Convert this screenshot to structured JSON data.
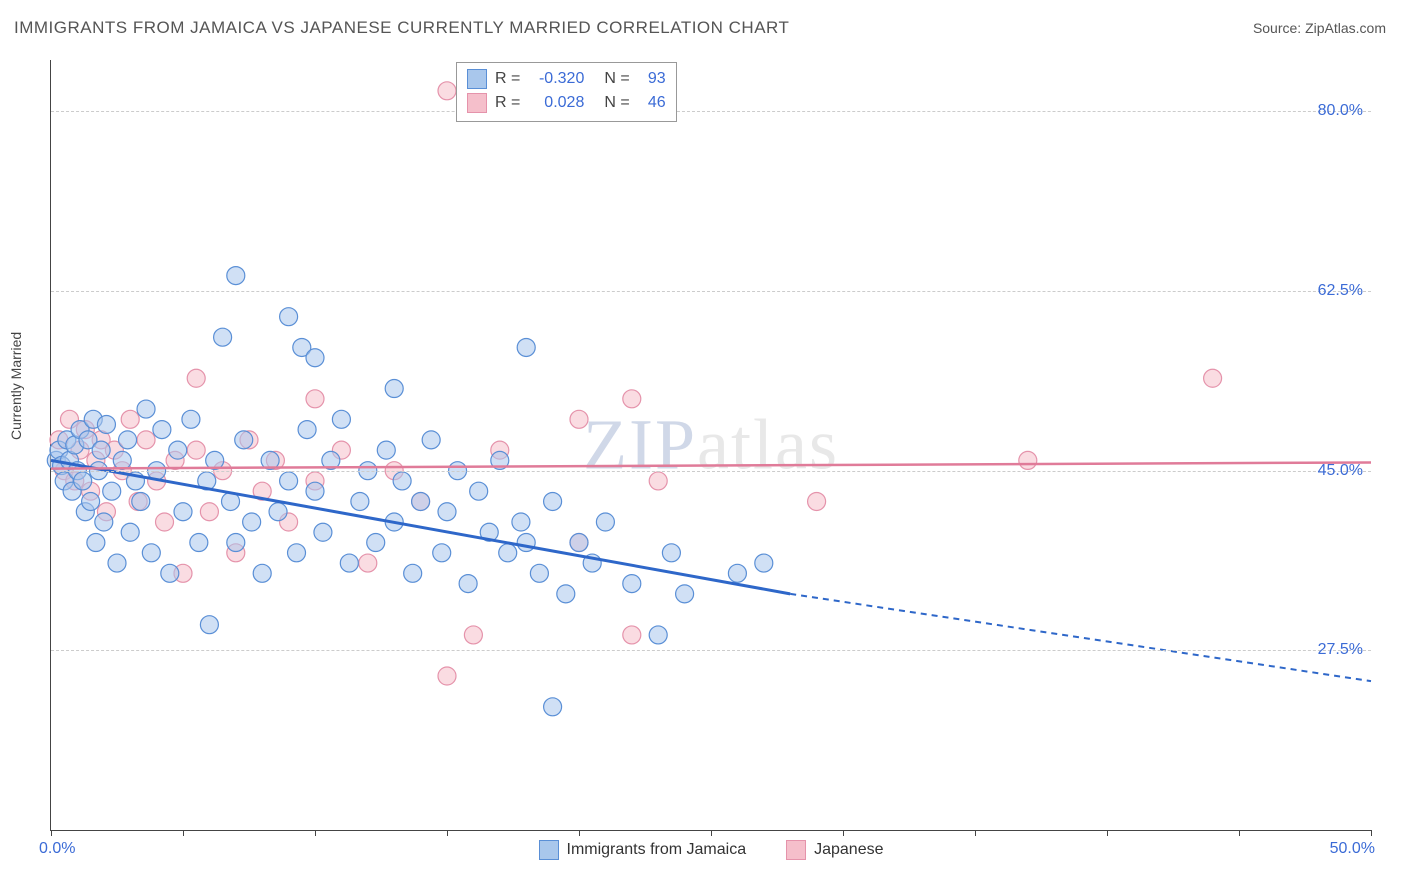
{
  "header": {
    "title": "IMMIGRANTS FROM JAMAICA VS JAPANESE CURRENTLY MARRIED CORRELATION CHART",
    "source": "Source: ZipAtlas.com"
  },
  "chart": {
    "type": "scatter",
    "y_axis_label": "Currently Married",
    "watermark": "ZIPatlas",
    "x_range": [
      0,
      50
    ],
    "y_range": [
      10,
      85
    ],
    "x_ticks": [
      0,
      5,
      10,
      15,
      20,
      25,
      30,
      35,
      40,
      45,
      50
    ],
    "x_tick_labels": {
      "first": "0.0%",
      "last": "50.0%"
    },
    "y_ticks": [
      27.5,
      45.0,
      62.5,
      80.0
    ],
    "y_tick_labels": [
      "27.5%",
      "45.0%",
      "62.5%",
      "80.0%"
    ],
    "background_color": "#ffffff",
    "grid_color": "#cccccc",
    "axis_color": "#444444",
    "marker_radius": 9,
    "marker_opacity": 0.55,
    "series": {
      "blue": {
        "label": "Immigrants from Jamaica",
        "fill": "#a9c7ec",
        "stroke": "#5a8fd6",
        "line_color": "#2e67c9",
        "R": "-0.320",
        "N": "93",
        "trend": {
          "x1": 0,
          "y1": 46.0,
          "x2_solid": 28,
          "y2_solid": 33.0,
          "x2": 50,
          "y2": 24.5
        }
      },
      "pink": {
        "label": "Japanese",
        "fill": "#f5bfcb",
        "stroke": "#e593ab",
        "line_color": "#e07b99",
        "R": "0.028",
        "N": "46",
        "trend": {
          "x1": 0,
          "y1": 45.2,
          "x2": 50,
          "y2": 45.8
        }
      }
    },
    "blue_points": [
      [
        0.2,
        46
      ],
      [
        0.3,
        47
      ],
      [
        0.4,
        45.5
      ],
      [
        0.5,
        44
      ],
      [
        0.6,
        48
      ],
      [
        0.7,
        46
      ],
      [
        0.8,
        43
      ],
      [
        0.9,
        47.5
      ],
      [
        1.0,
        45
      ],
      [
        1.1,
        49
      ],
      [
        1.2,
        44
      ],
      [
        1.3,
        41
      ],
      [
        1.4,
        48
      ],
      [
        1.5,
        42
      ],
      [
        1.6,
        50
      ],
      [
        1.7,
        38
      ],
      [
        1.8,
        45
      ],
      [
        1.9,
        47
      ],
      [
        2.0,
        40
      ],
      [
        2.1,
        49.5
      ],
      [
        2.3,
        43
      ],
      [
        2.5,
        36
      ],
      [
        2.7,
        46
      ],
      [
        2.9,
        48
      ],
      [
        3.0,
        39
      ],
      [
        3.2,
        44
      ],
      [
        3.4,
        42
      ],
      [
        3.6,
        51
      ],
      [
        3.8,
        37
      ],
      [
        4.0,
        45
      ],
      [
        4.2,
        49
      ],
      [
        4.5,
        35
      ],
      [
        4.8,
        47
      ],
      [
        5.0,
        41
      ],
      [
        5.3,
        50
      ],
      [
        5.6,
        38
      ],
      [
        5.9,
        44
      ],
      [
        6.0,
        30
      ],
      [
        6.2,
        46
      ],
      [
        6.5,
        58
      ],
      [
        6.8,
        42
      ],
      [
        7.0,
        38
      ],
      [
        7.0,
        64
      ],
      [
        7.3,
        48
      ],
      [
        7.6,
        40
      ],
      [
        8.0,
        35
      ],
      [
        8.3,
        46
      ],
      [
        8.6,
        41
      ],
      [
        9.0,
        44
      ],
      [
        9.0,
        60
      ],
      [
        9.3,
        37
      ],
      [
        9.5,
        57
      ],
      [
        9.7,
        49
      ],
      [
        10.0,
        43
      ],
      [
        10.0,
        56
      ],
      [
        10.3,
        39
      ],
      [
        10.6,
        46
      ],
      [
        11.0,
        50
      ],
      [
        11.3,
        36
      ],
      [
        11.7,
        42
      ],
      [
        12.0,
        45
      ],
      [
        12.3,
        38
      ],
      [
        12.7,
        47
      ],
      [
        13.0,
        40
      ],
      [
        13.0,
        53
      ],
      [
        13.3,
        44
      ],
      [
        13.7,
        35
      ],
      [
        14.0,
        42
      ],
      [
        14.4,
        48
      ],
      [
        14.8,
        37
      ],
      [
        15.0,
        41
      ],
      [
        15.4,
        45
      ],
      [
        15.8,
        34
      ],
      [
        16.2,
        43
      ],
      [
        16.6,
        39
      ],
      [
        17.0,
        46
      ],
      [
        17.3,
        37
      ],
      [
        17.8,
        40
      ],
      [
        18.0,
        38
      ],
      [
        18.0,
        57
      ],
      [
        18.5,
        35
      ],
      [
        19.0,
        42
      ],
      [
        19.0,
        22
      ],
      [
        19.5,
        33
      ],
      [
        20.0,
        38
      ],
      [
        20.5,
        36
      ],
      [
        21.0,
        40
      ],
      [
        22.0,
        34
      ],
      [
        23.0,
        29
      ],
      [
        23.5,
        37
      ],
      [
        24.0,
        33
      ],
      [
        26.0,
        35
      ],
      [
        27.0,
        36
      ]
    ],
    "pink_points": [
      [
        0.3,
        48
      ],
      [
        0.5,
        45
      ],
      [
        0.7,
        50
      ],
      [
        0.9,
        44
      ],
      [
        1.1,
        47
      ],
      [
        1.3,
        49
      ],
      [
        1.5,
        43
      ],
      [
        1.7,
        46
      ],
      [
        1.9,
        48
      ],
      [
        2.1,
        41
      ],
      [
        2.4,
        47
      ],
      [
        2.7,
        45
      ],
      [
        3.0,
        50
      ],
      [
        3.3,
        42
      ],
      [
        3.6,
        48
      ],
      [
        4.0,
        44
      ],
      [
        4.3,
        40
      ],
      [
        4.7,
        46
      ],
      [
        5.0,
        35
      ],
      [
        5.5,
        47
      ],
      [
        5.5,
        54
      ],
      [
        6.0,
        41
      ],
      [
        6.5,
        45
      ],
      [
        7.0,
        37
      ],
      [
        7.5,
        48
      ],
      [
        8.0,
        43
      ],
      [
        8.5,
        46
      ],
      [
        9.0,
        40
      ],
      [
        10.0,
        52
      ],
      [
        10.0,
        44
      ],
      [
        11.0,
        47
      ],
      [
        12.0,
        36
      ],
      [
        13.0,
        45
      ],
      [
        14.0,
        42
      ],
      [
        15.0,
        25
      ],
      [
        15.0,
        82
      ],
      [
        16.0,
        29
      ],
      [
        17.0,
        47
      ],
      [
        20.0,
        38
      ],
      [
        22.0,
        29
      ],
      [
        22.0,
        52
      ],
      [
        23.0,
        44
      ],
      [
        29.0,
        42
      ],
      [
        37.0,
        46
      ],
      [
        44.0,
        54
      ],
      [
        20.0,
        50
      ]
    ]
  },
  "colors": {
    "link_blue": "#3b6bd6",
    "text": "#444444"
  }
}
